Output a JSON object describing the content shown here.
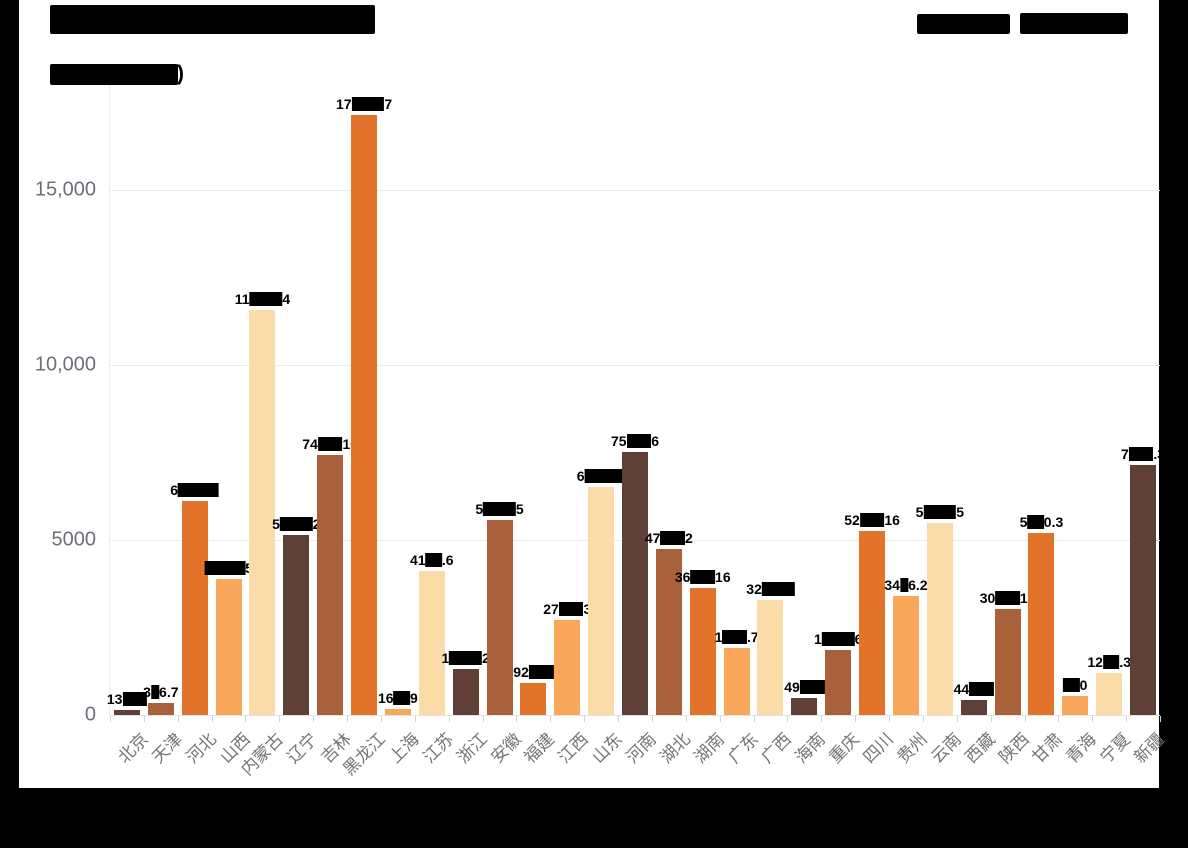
{
  "page": {
    "background": "#ffffff",
    "redaction_color": "#000000",
    "note": "title, unit label and legend text are blacked-out in the source image; bar value labels are partially blacked-out"
  },
  "header": {
    "title_text": "",
    "title_redacted": true,
    "unit_label_redacted": true,
    "unit_suffix": ")",
    "legend_redacted": true
  },
  "chart_data": {
    "type": "bar",
    "title": "",
    "xlabel": "",
    "ylabel": "",
    "ylim": [
      0,
      17500
    ],
    "grid": true,
    "legend_position": "top-right",
    "yticks": [
      {
        "value": 0,
        "label": "0"
      },
      {
        "value": 5000,
        "label": "5000"
      },
      {
        "value": 10000,
        "label": "10,000"
      },
      {
        "value": 15000,
        "label": "15,000"
      }
    ],
    "palette": [
      "#5E4036",
      "#A8613B",
      "#E2732A",
      "#F9A85B",
      "#FBDCA8"
    ],
    "categories": [
      "北京",
      "天津",
      "河北",
      "山西",
      "内蒙古",
      "辽宁",
      "吉林",
      "黑龙江",
      "上海",
      "江苏",
      "浙江",
      "安徽",
      "福建",
      "江西",
      "山东",
      "河南",
      "湖北",
      "湖南",
      "广东",
      "广西",
      "海南",
      "重庆",
      "四川",
      "贵州",
      "云南",
      "西藏",
      "陕西",
      "甘肃",
      "青海",
      "宁夏",
      "新疆"
    ],
    "values": [
      134.6,
      336.7,
      6114.4,
      3895.5,
      11574.4,
      5152.2,
      7434.16,
      17142.7,
      163.9,
      4103.6,
      1320.2,
      5571.5,
      920.4,
      2713.3,
      6513.8,
      7513.6,
      4742.2,
      3633.16,
      1914.7,
      3286.7,
      490.8,
      1860.6,
      5253.16,
      3406.2,
      5484.5,
      440.8,
      3034.16,
      5200.3,
      530,
      1201.3,
      7131.3
    ],
    "bars": [
      {
        "name": "北京",
        "label": "134.6",
        "pre": "13",
        "post": ""
      },
      {
        "name": "天津",
        "label": "336.7",
        "pre": "3",
        "post": "6.7"
      },
      {
        "name": "河北",
        "label": "6114.4",
        "pre": "6",
        "post": ""
      },
      {
        "name": "山西",
        "label": "3895.5",
        "pre": "",
        "post": "5"
      },
      {
        "name": "内蒙古",
        "label": "11574.4",
        "pre": "11",
        "post": "4"
      },
      {
        "name": "辽宁",
        "label": "5152.2",
        "pre": "5",
        "post": "2"
      },
      {
        "name": "吉林",
        "label": "7434.16",
        "pre": "74",
        "post": "16"
      },
      {
        "name": "黑龙江",
        "label": "17142.7",
        "pre": "17",
        "post": "7"
      },
      {
        "name": "上海",
        "label": "163.9",
        "pre": "16",
        "post": "9"
      },
      {
        "name": "江苏",
        "label": "4103.6",
        "pre": "41",
        "post": ".6"
      },
      {
        "name": "浙江",
        "label": "1320.2",
        "pre": "1",
        "post": "2"
      },
      {
        "name": "安徽",
        "label": "5571.5",
        "pre": "5",
        "post": "5"
      },
      {
        "name": "福建",
        "label": "920.4",
        "pre": "92",
        "post": ""
      },
      {
        "name": "江西",
        "label": "2713.3",
        "pre": "27",
        "post": "3"
      },
      {
        "name": "山东",
        "label": "6513.8",
        "pre": "6",
        "post": ""
      },
      {
        "name": "河南",
        "label": "7513.6",
        "pre": "75",
        "post": "6"
      },
      {
        "name": "湖北",
        "label": "4742.2",
        "pre": "47",
        "post": "2"
      },
      {
        "name": "湖南",
        "label": "3633.16",
        "pre": "36",
        "post": "16"
      },
      {
        "name": "广东",
        "label": "1914.7",
        "pre": "1",
        "post": ".7"
      },
      {
        "name": "广西",
        "label": "3286.7",
        "pre": "32",
        "post": ""
      },
      {
        "name": "海南",
        "label": "490.8",
        "pre": "49",
        "post": ""
      },
      {
        "name": "重庆",
        "label": "1860.6",
        "pre": "1",
        "post": "6"
      },
      {
        "name": "四川",
        "label": "5253.16",
        "pre": "52",
        "post": "16"
      },
      {
        "name": "贵州",
        "label": "3406.2",
        "pre": "34",
        "post": "6.2"
      },
      {
        "name": "云南",
        "label": "5484.5",
        "pre": "5",
        "post": "5"
      },
      {
        "name": "西藏",
        "label": "440.8",
        "pre": "44",
        "post": ""
      },
      {
        "name": "陕西",
        "label": "3034.16",
        "pre": "30",
        "post": "16"
      },
      {
        "name": "甘肃",
        "label": "5200.3",
        "pre": "5",
        "post": "0.3"
      },
      {
        "name": "青海",
        "label": "530",
        "pre": "",
        "post": "0"
      },
      {
        "name": "宁夏",
        "label": "1201.3",
        "pre": "12",
        "post": ".3"
      },
      {
        "name": "新疆",
        "label": "7131.3",
        "pre": "7",
        "post": ".3"
      }
    ]
  }
}
